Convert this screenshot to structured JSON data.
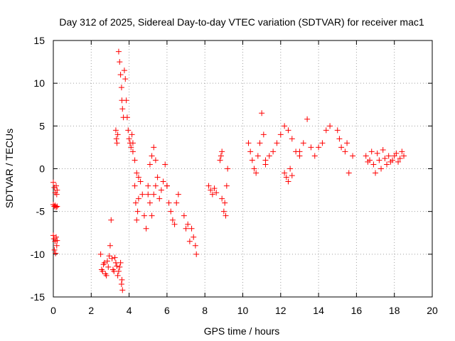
{
  "chart_data": {
    "type": "scatter",
    "title": "Day 312 of 2025, Sidereal Day-to-day VTEC variation (SDTVAR) for receiver mac1",
    "xlabel": "GPS time / hours",
    "ylabel": "SDTVAR / TECUs",
    "xlim": [
      0,
      20
    ],
    "ylim": [
      -15,
      15
    ],
    "xticks": [
      0,
      2,
      4,
      6,
      8,
      10,
      12,
      14,
      16,
      18,
      20
    ],
    "yticks": [
      -15,
      -10,
      -5,
      0,
      5,
      10,
      15
    ],
    "grid": true,
    "marker": "plus",
    "color": "#ff0000",
    "series": [
      {
        "name": "SDTVAR",
        "segments": [
          {
            "x": [
              0.0,
              0.05,
              0.1,
              0.15,
              0.18,
              0.2
            ],
            "y": [
              -1.6,
              -2.2,
              -2.8,
              -2.0,
              -3.0,
              -2.5
            ]
          },
          {
            "x": [
              0.0,
              0.05,
              0.1,
              0.15,
              0.2
            ],
            "y": [
              -4.2,
              -4.4,
              -4.3,
              -4.5,
              -4.4
            ]
          },
          {
            "x": [
              0.0,
              0.03,
              0.06,
              0.09,
              0.12,
              0.15,
              0.18,
              0.2
            ],
            "y": [
              -7.8,
              -8.2,
              -9.5,
              -8.5,
              -9.9,
              -8.0,
              -9.0,
              -8.4
            ]
          },
          {
            "x": [
              2.5,
              2.6,
              2.7,
              2.8,
              2.9,
              3.0,
              3.05,
              3.1,
              3.2,
              3.3,
              3.4,
              3.5,
              3.6,
              3.65
            ],
            "y": [
              -10.0,
              -12.0,
              -11.0,
              -12.5,
              -11.5,
              -9.0,
              -6.0,
              -10.5,
              -12.0,
              -11.0,
              -12.5,
              -11.5,
              -13.5,
              -14.2
            ]
          },
          {
            "x": [
              2.55,
              2.65,
              2.75,
              2.85,
              2.95,
              3.15,
              3.25,
              3.35,
              3.45,
              3.55,
              3.62
            ],
            "y": [
              -11.8,
              -11.2,
              -12.3,
              -10.8,
              -10.2,
              -11.8,
              -10.4,
              -11.4,
              -12.0,
              -11.0,
              -13.0
            ]
          },
          {
            "x": [
              3.3,
              3.33,
              3.36,
              3.4
            ],
            "y": [
              4.5,
              3.5,
              3.0,
              4.0
            ]
          },
          {
            "x": [
              3.45,
              3.5,
              3.55,
              3.6,
              3.62,
              3.65,
              3.7
            ],
            "y": [
              13.7,
              12.5,
              11.0,
              9.5,
              8.0,
              7.0,
              6.0
            ]
          },
          {
            "x": [
              3.75,
              3.8,
              3.85,
              3.9,
              3.95,
              4.0,
              4.05,
              4.1,
              4.15,
              4.2
            ],
            "y": [
              11.5,
              10.5,
              8.0,
              6.0,
              4.5,
              3.5,
              3.0,
              2.5,
              4.0,
              3.0
            ]
          },
          {
            "x": [
              4.2,
              4.3,
              4.4,
              4.5,
              4.6,
              4.7,
              4.8,
              4.9,
              5.0,
              5.1,
              5.2,
              5.3,
              5.4
            ],
            "y": [
              2.0,
              1.0,
              -0.5,
              -1.0,
              -1.5,
              -3.0,
              -5.5,
              -7.0,
              -2.0,
              0.5,
              1.5,
              2.5,
              1.0
            ]
          },
          {
            "x": [
              4.3,
              4.35,
              4.4,
              4.45,
              4.5
            ],
            "y": [
              -2.0,
              -4.0,
              -6.0,
              -5.0,
              -3.5
            ]
          },
          {
            "x": [
              5.0,
              5.1,
              5.2,
              5.3,
              5.4,
              5.5,
              5.6,
              5.7,
              5.8,
              5.9,
              6.0
            ],
            "y": [
              -3.0,
              -4.0,
              -5.5,
              -3.0,
              -2.0,
              -1.0,
              -3.5,
              -2.5,
              -1.5,
              0.5,
              -2.0
            ]
          },
          {
            "x": [
              6.0,
              6.1,
              6.2,
              6.3,
              6.4,
              6.5,
              6.6
            ],
            "y": [
              -2.0,
              -4.0,
              -5.0,
              -6.0,
              -6.5,
              -4.0,
              -3.0
            ]
          },
          {
            "x": [
              6.9,
              7.0,
              7.1,
              7.2,
              7.3,
              7.4,
              7.5,
              7.55
            ],
            "y": [
              -5.5,
              -7.0,
              -6.5,
              -8.5,
              -7.0,
              -8.0,
              -9.0,
              -10.0
            ]
          },
          {
            "x": [
              8.2,
              8.3,
              8.4,
              8.5,
              8.6
            ],
            "y": [
              -2.0,
              -2.5,
              -3.0,
              -2.3,
              -2.8
            ]
          },
          {
            "x": [
              8.8,
              8.85,
              8.9
            ],
            "y": [
              1.0,
              1.5,
              2.0
            ]
          },
          {
            "x": [
              8.9,
              9.0,
              9.05,
              9.1,
              9.15,
              9.2
            ],
            "y": [
              -3.5,
              -5.0,
              -4.0,
              -5.5,
              -2.0,
              0.0
            ]
          },
          {
            "x": [
              10.3,
              10.4,
              10.5,
              10.6,
              10.7,
              10.8,
              10.9,
              11.0,
              11.1,
              11.2
            ],
            "y": [
              3.0,
              2.0,
              1.0,
              0.0,
              -0.5,
              1.5,
              3.0,
              6.5,
              4.0,
              0.5
            ]
          },
          {
            "x": [
              11.2,
              11.4,
              11.6,
              11.8,
              12.0,
              12.2,
              12.4,
              12.6,
              12.8,
              13.0
            ],
            "y": [
              1.0,
              1.5,
              2.0,
              3.0,
              4.0,
              5.0,
              4.5,
              3.5,
              2.0,
              1.5
            ]
          },
          {
            "x": [
              12.2,
              12.3,
              12.4,
              12.5,
              12.6
            ],
            "y": [
              -0.5,
              -1.0,
              -1.5,
              0.0,
              -0.8
            ]
          },
          {
            "x": [
              13.0,
              13.2,
              13.4,
              13.6,
              13.8,
              14.0,
              14.2,
              14.4,
              14.6
            ],
            "y": [
              2.0,
              3.0,
              5.8,
              2.5,
              1.5,
              2.5,
              3.0,
              4.5,
              5.0
            ]
          },
          {
            "x": [
              15.0,
              15.1,
              15.2,
              15.4,
              15.5,
              15.6,
              15.8
            ],
            "y": [
              4.5,
              3.5,
              2.5,
              2.0,
              3.0,
              -0.5,
              1.5
            ]
          },
          {
            "x": [
              16.5,
              16.7,
              16.9,
              17.1,
              17.3,
              17.5,
              17.7,
              17.9,
              18.1,
              18.3,
              18.5
            ],
            "y": [
              1.5,
              1.0,
              0.5,
              1.8,
              0.0,
              1.2,
              1.5,
              1.0,
              1.8,
              1.2,
              1.5
            ]
          },
          {
            "x": [
              16.6,
              16.8,
              17.0,
              17.2,
              17.4,
              17.6,
              17.8,
              18.0,
              18.2,
              18.4
            ],
            "y": [
              0.8,
              2.0,
              -0.5,
              1.0,
              2.2,
              0.5,
              0.8,
              1.5,
              0.8,
              2.0
            ]
          }
        ]
      }
    ]
  }
}
